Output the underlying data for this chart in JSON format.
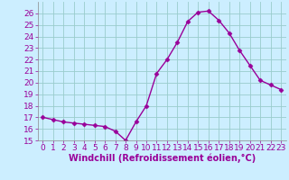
{
  "x": [
    0,
    1,
    2,
    3,
    4,
    5,
    6,
    7,
    8,
    9,
    10,
    11,
    12,
    13,
    14,
    15,
    16,
    17,
    18,
    19,
    20,
    21,
    22,
    23
  ],
  "y": [
    17.0,
    16.8,
    16.6,
    16.5,
    16.4,
    16.3,
    16.2,
    15.8,
    15.0,
    16.6,
    18.0,
    20.8,
    22.0,
    23.5,
    25.3,
    26.1,
    26.2,
    25.4,
    24.3,
    22.8,
    21.5,
    20.2,
    19.8,
    19.4
  ],
  "line_color": "#990099",
  "marker": "D",
  "marker_size": 2.5,
  "bg_color": "#cceeff",
  "grid_color": "#99cccc",
  "xlabel": "Windchill (Refroidissement éolien,°C)",
  "xlim": [
    -0.5,
    23.5
  ],
  "ylim": [
    15,
    27
  ],
  "xticks": [
    0,
    1,
    2,
    3,
    4,
    5,
    6,
    7,
    8,
    9,
    10,
    11,
    12,
    13,
    14,
    15,
    16,
    17,
    18,
    19,
    20,
    21,
    22,
    23
  ],
  "yticks": [
    15,
    16,
    17,
    18,
    19,
    20,
    21,
    22,
    23,
    24,
    25,
    26
  ],
  "tick_label_fontsize": 6.5,
  "xlabel_fontsize": 7,
  "line_width": 1.0
}
